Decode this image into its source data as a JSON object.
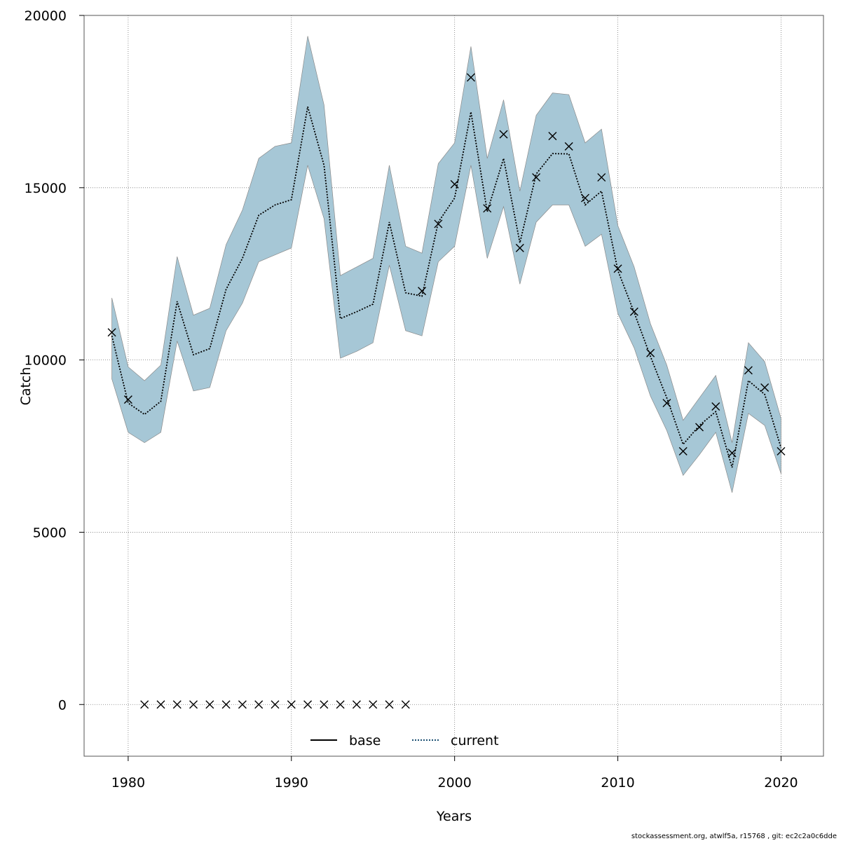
{
  "chart_data": {
    "type": "line",
    "xlabel": "Years",
    "ylabel": "Catch",
    "xlim": [
      1977.3,
      2022.6
    ],
    "ylim": [
      -1500,
      20000
    ],
    "x_ticks": [
      1980,
      1990,
      2000,
      2010,
      2020
    ],
    "y_ticks": [
      0,
      5000,
      10000,
      15000,
      20000
    ],
    "grid": true,
    "legend_position": "bottom-center",
    "legend": [
      {
        "name": "base",
        "color": "#000000",
        "style": "solid"
      },
      {
        "name": "current",
        "color": "#1b4f72",
        "style": "dotted"
      }
    ],
    "band_color": "#a6c7d6",
    "years": [
      1979,
      1980,
      1981,
      1982,
      1983,
      1984,
      1985,
      1986,
      1987,
      1988,
      1989,
      1990,
      1991,
      1992,
      1993,
      1994,
      1995,
      1996,
      1997,
      1998,
      1999,
      2000,
      2001,
      2002,
      2003,
      2004,
      2005,
      2006,
      2007,
      2008,
      2009,
      2010,
      2011,
      2012,
      2013,
      2014,
      2015,
      2016,
      2017,
      2018,
      2019,
      2020
    ],
    "series": [
      {
        "name": "current",
        "values": [
          10700,
          8750,
          8420,
          8800,
          11700,
          10150,
          10330,
          12050,
          12950,
          14200,
          14500,
          14650,
          17350,
          15650,
          11200,
          11400,
          11620,
          14000,
          11950,
          11850,
          14000,
          14700,
          17200,
          14300,
          15850,
          13400,
          15400,
          15990,
          15980,
          14500,
          14900,
          12600,
          11380,
          10100,
          8900,
          7550,
          8100,
          8500,
          6880,
          9400,
          9000,
          7450
        ]
      }
    ],
    "band": {
      "lower": [
        9450,
        7900,
        7600,
        7900,
        10550,
        9100,
        9200,
        10850,
        11650,
        12850,
        13050,
        13250,
        15650,
        14100,
        10050,
        10250,
        10500,
        12750,
        10850,
        10700,
        12850,
        13300,
        15650,
        12950,
        14450,
        12200,
        14000,
        14500,
        14500,
        13300,
        13650,
        11350,
        10350,
        8950,
        7950,
        6650,
        7250,
        7900,
        6150,
        8450,
        8100,
        6700
      ],
      "upper": [
        11800,
        9800,
        9400,
        9850,
        13000,
        11300,
        11500,
        13350,
        14350,
        15850,
        16200,
        16300,
        19400,
        17400,
        12450,
        12700,
        12950,
        15650,
        13300,
        13100,
        15700,
        16300,
        19100,
        15850,
        17550,
        14900,
        17100,
        17750,
        17700,
        16300,
        16700,
        13900,
        12700,
        11050,
        9850,
        8250,
        8900,
        9550,
        7600,
        10500,
        9950,
        8300
      ]
    },
    "observed": {
      "name": "observed",
      "marker": "x",
      "values": [
        10800,
        8850,
        0,
        0,
        0,
        0,
        0,
        0,
        0,
        0,
        0,
        0,
        0,
        0,
        0,
        0,
        0,
        0,
        0,
        12000,
        13950,
        15100,
        18200,
        14400,
        16550,
        13250,
        15300,
        16500,
        16200,
        14700,
        15300,
        12650,
        11400,
        10200,
        8750,
        7350,
        8050,
        8650,
        7300,
        9700,
        9200,
        7350
      ]
    }
  },
  "footer": "stockassessment.org, atwlf5a, r15768 , git: ec2c2a0c6dde"
}
